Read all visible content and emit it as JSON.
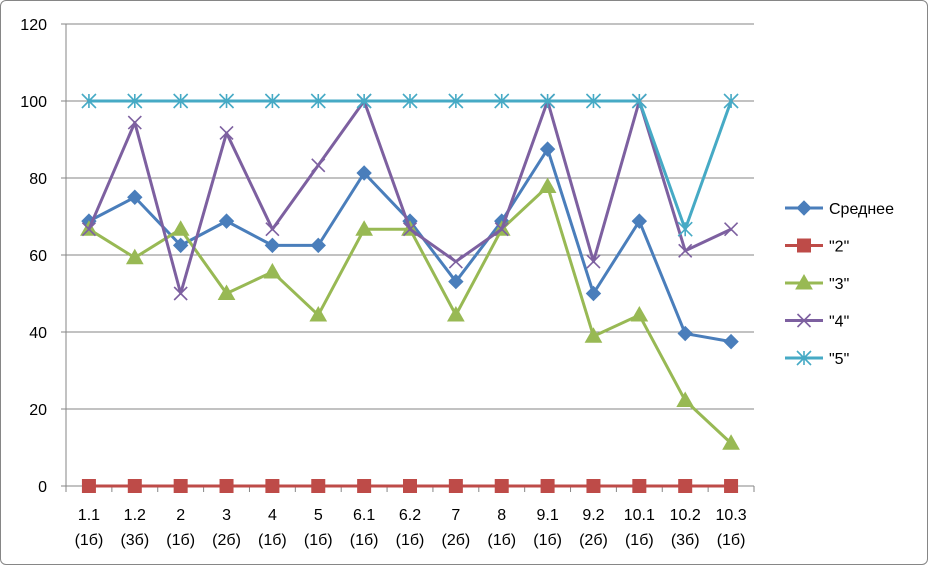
{
  "chart_data": {
    "type": "line",
    "categories": [
      "1.1 (1б)",
      "1.2 (3б)",
      "2 (1б)",
      "3 (2б)",
      "4 (1б)",
      "5 (1б)",
      "6.1 (1б)",
      "6.2 (1б)",
      "7 (2б)",
      "8 (1б)",
      "9.1 (1б)",
      "9.2 (2б)",
      "10.1 (1б)",
      "10.2 (3б)",
      "10.3 (1б)"
    ],
    "category_lines": [
      [
        "1.1",
        "(1б)"
      ],
      [
        "1.2",
        "(3б)"
      ],
      [
        "2",
        "(1б)"
      ],
      [
        "3",
        "(2б)"
      ],
      [
        "4",
        "(1б)"
      ],
      [
        "5",
        "(1б)"
      ],
      [
        "6.1",
        "(1б)"
      ],
      [
        "6.2",
        "(1б)"
      ],
      [
        "7",
        "(2б)"
      ],
      [
        "8",
        "(1б)"
      ],
      [
        "9.1",
        "(1б)"
      ],
      [
        "9.2",
        "(2б)"
      ],
      [
        "10.1",
        "(1б)"
      ],
      [
        "10.2",
        "(3б)"
      ],
      [
        "10.3",
        "(1б)"
      ]
    ],
    "series": [
      {
        "name": "Среднее",
        "color": "#4a7ebb",
        "marker": "diamond",
        "values": [
          68.8,
          75.0,
          62.5,
          68.8,
          62.5,
          62.5,
          81.3,
          68.8,
          53.1,
          68.8,
          87.5,
          50.0,
          68.8,
          39.6,
          37.5
        ]
      },
      {
        "name": "\"2\"",
        "color": "#be4b48",
        "marker": "square",
        "values": [
          0,
          0,
          0,
          0,
          0,
          0,
          0,
          0,
          0,
          0,
          0,
          0,
          0,
          0,
          0
        ]
      },
      {
        "name": "\"3\"",
        "color": "#98b954",
        "marker": "triangle",
        "values": [
          66.7,
          59.3,
          66.7,
          50.0,
          55.6,
          44.4,
          66.7,
          66.7,
          44.4,
          66.7,
          77.8,
          38.9,
          44.4,
          22.2,
          11.1
        ]
      },
      {
        "name": "\"4\"",
        "color": "#7d60a0",
        "marker": "x",
        "values": [
          66.7,
          94.4,
          50.0,
          91.7,
          66.7,
          83.3,
          100,
          66.7,
          58.3,
          66.7,
          100,
          58.3,
          100,
          61.1,
          66.7
        ]
      },
      {
        "name": "\"5\"",
        "color": "#46aac5",
        "marker": "star",
        "values": [
          100,
          100,
          100,
          100,
          100,
          100,
          100,
          100,
          100,
          100,
          100,
          100,
          100,
          66.7,
          100
        ]
      }
    ],
    "ylim": [
      0,
      120
    ],
    "yticks": [
      0,
      20,
      40,
      60,
      80,
      100,
      120
    ],
    "grid": true,
    "legend_position": "right",
    "title": "",
    "xlabel": "",
    "ylabel": ""
  }
}
